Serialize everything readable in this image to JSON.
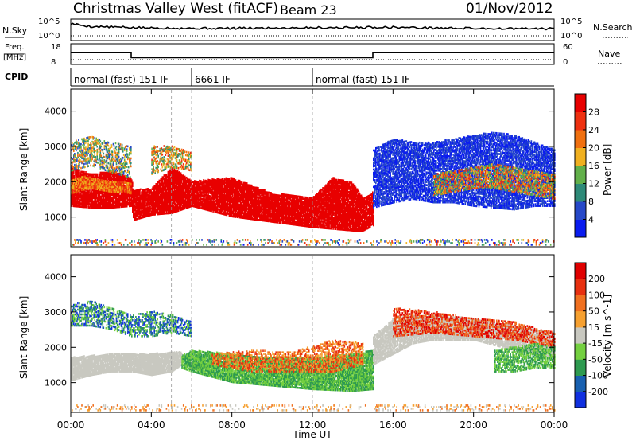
{
  "header": {
    "radar": "Christmas Valley West (fitACF)",
    "beam": "Beam 23",
    "date": "01/Nov/2012"
  },
  "nsky_panel": {
    "left_label": "N.Sky",
    "right_label": "N.Search",
    "left_ticks": [
      "10^5",
      "10^0"
    ],
    "right_ticks": [
      "10^5",
      "10^0"
    ]
  },
  "freq_panel": {
    "left_label_1": "Freq.",
    "left_label_2": "[MHz]",
    "right_label": "Nave",
    "left_ticks": [
      "18",
      "8"
    ],
    "right_ticks": [
      "60",
      "0"
    ]
  },
  "cpid": {
    "label": "CPID",
    "segments": [
      {
        "label": "normal (fast) 151 IF",
        "start": 0,
        "end": 6
      },
      {
        "label": "6661 IF",
        "start": 6,
        "end": 12
      },
      {
        "label": "normal (fast) 151 IF",
        "start": 12,
        "end": 24
      }
    ]
  },
  "colors": {
    "power": [
      "#0a1cf0",
      "#2648c8",
      "#2e8a78",
      "#62b04a",
      "#f0b020",
      "#f07010",
      "#ee3010",
      "#e80000"
    ],
    "velocity": [
      "#1030e0",
      "#1860b0",
      "#2e9a50",
      "#74d040",
      "#c8c8c0",
      "#f6a030",
      "#f07020",
      "#e83010",
      "#e00000"
    ]
  },
  "chart_data": [
    {
      "type": "line",
      "name": "N.Sky",
      "x_units": "hours UT",
      "x": [
        0,
        0.5,
        1,
        2,
        3,
        4,
        5,
        6,
        8,
        10,
        12,
        14,
        15,
        16,
        18,
        20,
        22,
        24
      ],
      "y_log10": [
        4.2,
        3.8,
        3.4,
        3.3,
        3.1,
        3.0,
        3.0,
        2.9,
        2.9,
        3.0,
        3.1,
        3.1,
        3.2,
        3.2,
        3.0,
        2.9,
        2.8,
        2.8
      ],
      "ylim_log10": [
        0,
        5
      ]
    },
    {
      "type": "line",
      "name": "Freq.",
      "x_units": "hours UT",
      "x": [
        0,
        3,
        3,
        15,
        15,
        24
      ],
      "y": [
        14,
        14,
        11,
        11,
        14,
        14
      ],
      "ylim": [
        8,
        18
      ]
    },
    {
      "type": "heatmap",
      "name": "Power",
      "ylabel": "Slant Range [km]",
      "colorbar_label": "Power [dB]",
      "colorbar_ticks": [
        "28",
        "24",
        "20",
        "16",
        "12",
        "8",
        "4"
      ],
      "y_ticks": [
        "4000",
        "3000",
        "2000",
        "1000"
      ],
      "ylim": [
        180,
        4600
      ],
      "bands": [
        {
          "x": [
            0,
            1,
            2,
            3,
            3.1,
            4,
            5,
            6,
            8,
            10,
            12,
            13,
            14,
            14.5,
            15
          ],
          "lo": [
            1300,
            1250,
            1250,
            1300,
            900,
            1050,
            1100,
            1300,
            1000,
            850,
            700,
            650,
            600,
            600,
            750
          ],
          "hi": [
            2400,
            2200,
            2300,
            2100,
            1750,
            1800,
            2400,
            2000,
            2100,
            1650,
            1550,
            2100,
            1950,
            1500,
            1700
          ],
          "cmin": 7,
          "cmax": 7,
          "density": 0.92,
          "seed": 11
        },
        {
          "x": [
            0,
            0.5,
            1,
            1.5,
            2,
            2.5,
            3
          ],
          "lo": [
            1650,
            1750,
            1800,
            1750,
            1700,
            1700,
            1650
          ],
          "hi": [
            2050,
            2150,
            2100,
            2050,
            2000,
            2000,
            1950
          ],
          "cmin": 4,
          "cmax": 6,
          "density": 0.8,
          "seed": 12
        },
        {
          "x": [
            0,
            1,
            2,
            3
          ],
          "lo": [
            2300,
            2450,
            2250,
            2100
          ],
          "hi": [
            3100,
            3300,
            3100,
            3000
          ],
          "cmin": 1,
          "cmax": 5,
          "density": 0.45,
          "seed": 13
        },
        {
          "x": [
            4,
            5,
            6
          ],
          "lo": [
            2200,
            2400,
            2300
          ],
          "hi": [
            3000,
            3000,
            2800
          ],
          "cmin": 2,
          "cmax": 6,
          "density": 0.45,
          "seed": 14
        },
        {
          "x": [
            15,
            16,
            17,
            18,
            19,
            20,
            21,
            22,
            23,
            24
          ],
          "lo": [
            1250,
            1400,
            1500,
            1400,
            1400,
            1300,
            1250,
            1200,
            1300,
            1300
          ],
          "hi": [
            2900,
            3200,
            3100,
            3100,
            3200,
            3300,
            3400,
            3300,
            3100,
            2900
          ],
          "cmin": 0,
          "cmax": 1,
          "density": 0.72,
          "seed": 15
        },
        {
          "x": [
            18,
            19,
            20,
            21,
            22,
            23,
            24
          ],
          "lo": [
            1600,
            1700,
            1800,
            1800,
            1700,
            1600,
            1500
          ],
          "hi": [
            2200,
            2300,
            2400,
            2500,
            2400,
            2300,
            2200
          ],
          "cmin": 2,
          "cmax": 6,
          "density": 0.55,
          "seed": 16
        },
        {
          "x": [
            0,
            24
          ],
          "lo": [
            200,
            200
          ],
          "hi": [
            380,
            380
          ],
          "cmin": 0,
          "cmax": 6,
          "density": 0.18,
          "seed": 17
        }
      ]
    },
    {
      "type": "heatmap",
      "name": "Velocity",
      "ylabel": "Slant Range [km]",
      "colorbar_label": "Velocity [m s^-1]",
      "colorbar_ticks": [
        "200",
        "100",
        "50",
        "15",
        "-15",
        "-50",
        "-100",
        "-200"
      ],
      "y_ticks": [
        "4000",
        "3000",
        "2000",
        "1000"
      ],
      "ylim": [
        180,
        4600
      ],
      "x_ticks": [
        "00:00",
        "04:00",
        "08:00",
        "12:00",
        "16:00",
        "20:00",
        "00:00"
      ],
      "xlabel": "Time UT",
      "xlim": [
        0,
        24
      ],
      "bands": [
        {
          "x": [
            0,
            1,
            2,
            3,
            4,
            5,
            5.5
          ],
          "lo": [
            1050,
            1200,
            1300,
            1300,
            1200,
            1300,
            1500
          ],
          "hi": [
            1700,
            1750,
            1800,
            1800,
            1800,
            1850,
            1850
          ],
          "cmin": 4,
          "cmax": 4,
          "density": 0.95,
          "seed": 21
        },
        {
          "x": [
            5.5,
            6,
            8,
            10,
            12,
            14,
            15
          ],
          "lo": [
            1400,
            1300,
            1000,
            900,
            800,
            750,
            800
          ],
          "hi": [
            1750,
            1900,
            1800,
            1700,
            1700,
            1800,
            1900
          ],
          "cmin": 2,
          "cmax": 3,
          "density": 0.9,
          "seed": 22
        },
        {
          "x": [
            7,
            9,
            11,
            13,
            14.5
          ],
          "lo": [
            1500,
            1300,
            1300,
            1300,
            1500
          ],
          "hi": [
            1800,
            1900,
            1850,
            2200,
            2100
          ],
          "cmin": 5,
          "cmax": 7,
          "density": 0.45,
          "seed": 23
        },
        {
          "x": [
            0,
            1,
            2,
            3,
            4,
            5,
            6
          ],
          "lo": [
            2600,
            2600,
            2500,
            2300,
            2300,
            2400,
            2300
          ],
          "hi": [
            3200,
            3300,
            3100,
            2900,
            3000,
            2900,
            2700
          ],
          "cmin": 0,
          "cmax": 3,
          "density": 0.45,
          "seed": 24
        },
        {
          "x": [
            15,
            16,
            17,
            18,
            20,
            22,
            24
          ],
          "lo": [
            1500,
            1800,
            2100,
            2200,
            2200,
            1900,
            1700
          ],
          "hi": [
            2300,
            2800,
            2900,
            2900,
            2800,
            2600,
            2400
          ],
          "cmin": 4,
          "cmax": 4,
          "density": 0.8,
          "seed": 25
        },
        {
          "x": [
            16,
            18,
            20,
            22,
            24
          ],
          "lo": [
            2300,
            2400,
            2300,
            2200,
            2000
          ],
          "hi": [
            3100,
            3000,
            2800,
            2700,
            2400
          ],
          "cmin": 6,
          "cmax": 8,
          "density": 0.5,
          "seed": 26
        },
        {
          "x": [
            21,
            22,
            23,
            24
          ],
          "lo": [
            1300,
            1300,
            1400,
            1400
          ],
          "hi": [
            1900,
            2000,
            2100,
            2000
          ],
          "cmin": 2,
          "cmax": 3,
          "density": 0.6,
          "seed": 27
        },
        {
          "x": [
            0,
            24
          ],
          "lo": [
            200,
            200
          ],
          "hi": [
            380,
            380
          ],
          "cmin": 4,
          "cmax": 6,
          "density": 0.18,
          "seed": 28
        }
      ]
    }
  ]
}
